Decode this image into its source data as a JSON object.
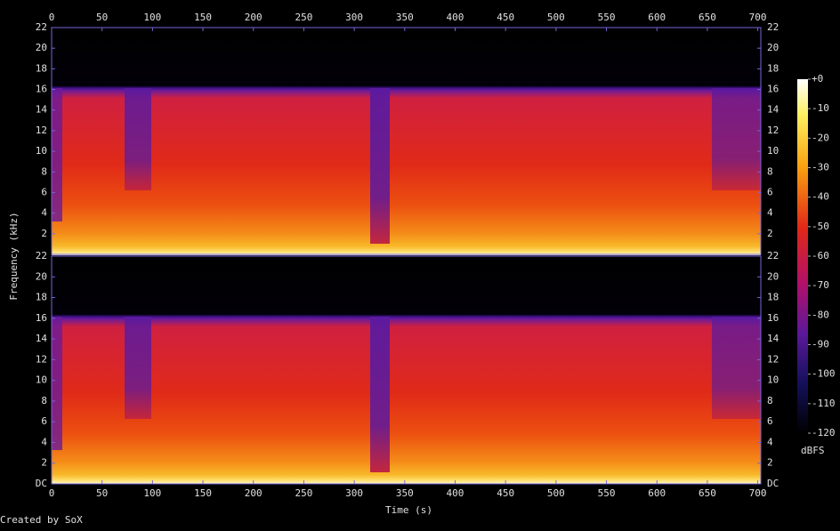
{
  "chart_data": {
    "type": "spectrogram",
    "xlabel": "Time (s)",
    "ylabel": "Frequency (kHz)",
    "footer": "Created by SoX",
    "xlim": [
      0,
      703
    ],
    "xticks": [
      0,
      50,
      100,
      150,
      200,
      250,
      300,
      350,
      400,
      450,
      500,
      550,
      600,
      650,
      700
    ],
    "channels": [
      {
        "ylim": [
          0,
          22
        ],
        "yticks": [
          2,
          4,
          6,
          8,
          10,
          12,
          14,
          16,
          18,
          20,
          22
        ]
      },
      {
        "ylim": [
          0,
          22
        ],
        "yticks": [
          {
            "value": 0,
            "label": "DC"
          },
          2,
          4,
          6,
          8,
          10,
          12,
          14,
          16,
          18,
          20,
          22
        ]
      }
    ],
    "colorbar": {
      "label": "dBFS",
      "lim": [
        -120,
        0
      ],
      "ticks": [
        {
          "value": 0,
          "label": "+0"
        },
        -10,
        -20,
        -30,
        -40,
        -50,
        -60,
        -70,
        -80,
        -90,
        -100,
        -110,
        -120
      ]
    }
  }
}
